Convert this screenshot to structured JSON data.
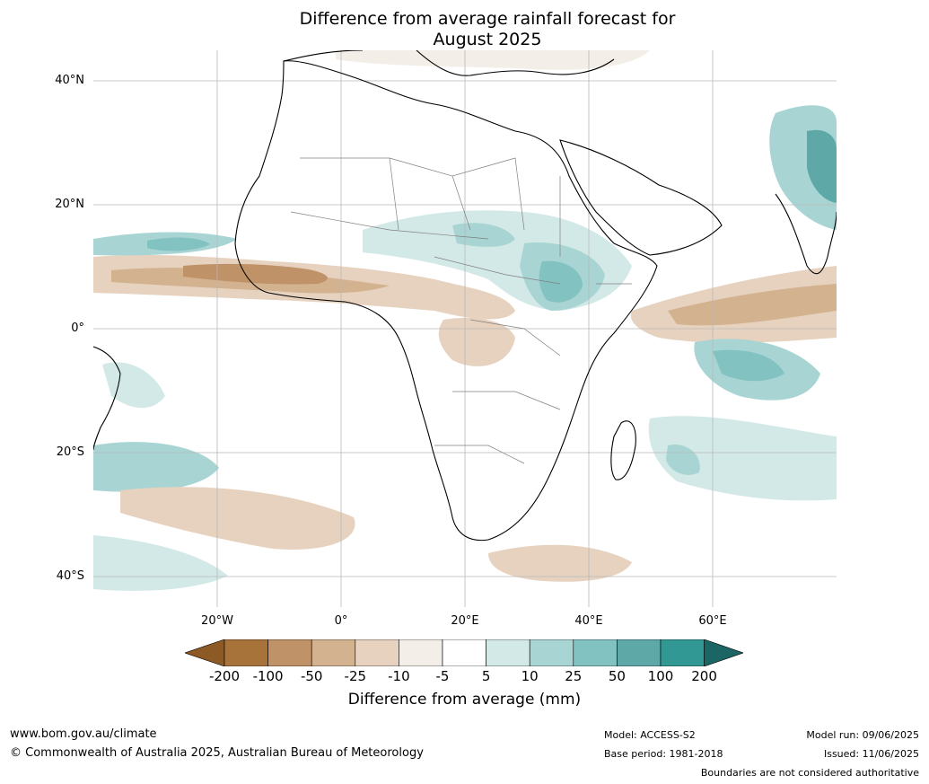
{
  "title": {
    "line1": "Difference from average rainfall forecast for",
    "line2": "August 2025"
  },
  "axes": {
    "lat_labels": [
      "40°N",
      "20°N",
      "0°",
      "20°S",
      "40°S"
    ],
    "lon_labels": [
      "20°W",
      "0°",
      "20°E",
      "40°E",
      "60°E"
    ]
  },
  "colorbar": {
    "ticks": [
      "-200",
      "-100",
      "-50",
      "-25",
      "-10",
      "-5",
      "5",
      "10",
      "25",
      "50",
      "100",
      "200"
    ],
    "colors": [
      "#a8733a",
      "#bf9268",
      "#d3b28f",
      "#e6d2bf",
      "#f3eee8",
      "#ffffff",
      "#d3e9e7",
      "#a8d5d3",
      "#82c2c1",
      "#5ea9a8",
      "#329894",
      "#1f7a78"
    ],
    "dry_end_color": "#8d5a26",
    "wet_end_color": "#1b6664",
    "label": "Difference from average (mm)"
  },
  "footer": {
    "website": "www.bom.gov.au/climate",
    "copyright": "© Commonwealth of Australia 2025, Australian Bureau of Meteorology",
    "model": "Model: ACCESS-S2",
    "base_period": "Base period: 1981-2018",
    "model_run": "Model run: 09/06/2025",
    "issued": "Issued: 11/06/2025",
    "disclaimer": "Boundaries are not considered authoritative"
  }
}
